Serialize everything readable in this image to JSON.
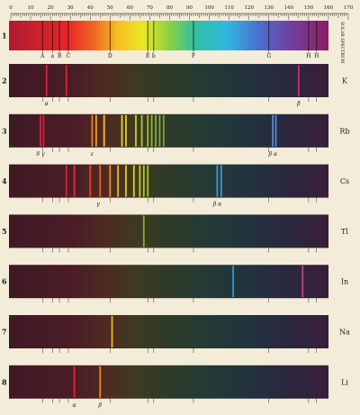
{
  "scale": {
    "numbers": [
      "0",
      "10",
      "20",
      "30",
      "40",
      "50",
      "60",
      "70",
      "80",
      "90",
      "100",
      "110",
      "120",
      "130",
      "140",
      "150",
      "160",
      "170"
    ],
    "vertical_label": "SOLAR SPECTRUM"
  },
  "solar": {
    "row_number": "1",
    "fraunhofer_labels": [
      "A",
      "a",
      "B",
      "C",
      "D",
      "E",
      "b",
      "F",
      "G",
      "H",
      "H"
    ],
    "lines": [
      16,
      21,
      24.5,
      29,
      50,
      69,
      72,
      92,
      130,
      150,
      154
    ]
  },
  "rows": [
    {
      "number": "2",
      "element": "K",
      "type": "mixed",
      "lines": [
        {
          "pos": 18,
          "color": "#e0203a"
        },
        {
          "pos": 28,
          "color": "#d8203a"
        },
        {
          "pos": 145,
          "color": "#c8306a"
        }
      ],
      "labels": [
        {
          "pos": 18,
          "text": "α"
        },
        {
          "pos": 145,
          "text": "β"
        }
      ]
    },
    {
      "number": "3",
      "element": "Rb",
      "type": "bright",
      "lines": [
        {
          "pos": 15,
          "color": "#e0203a"
        },
        {
          "pos": 16.5,
          "color": "#e0203a"
        },
        {
          "pos": 41,
          "color": "#f08020"
        },
        {
          "pos": 43,
          "color": "#f0a020"
        },
        {
          "pos": 47,
          "color": "#f0c020"
        },
        {
          "pos": 56,
          "color": "#e8d020"
        },
        {
          "pos": 58,
          "color": "#e8d020"
        },
        {
          "pos": 63,
          "color": "#c8d020"
        },
        {
          "pos": 66,
          "color": "#b0c830"
        },
        {
          "pos": 69,
          "color": "#a0c030"
        },
        {
          "pos": 71,
          "color": "#90b838"
        },
        {
          "pos": 73,
          "color": "#88b040"
        },
        {
          "pos": 75,
          "color": "#80a840"
        },
        {
          "pos": 77,
          "color": "#78a048"
        },
        {
          "pos": 132,
          "color": "#5a8ad0"
        },
        {
          "pos": 133.5,
          "color": "#5a8ad0"
        }
      ],
      "labels": [
        {
          "pos": 15,
          "text": "δ γ"
        },
        {
          "pos": 41,
          "text": "ε"
        },
        {
          "pos": 132,
          "text": "β α"
        }
      ]
    },
    {
      "number": "4",
      "element": "Cs",
      "type": "bright",
      "lines": [
        {
          "pos": 28,
          "color": "#e0203a"
        },
        {
          "pos": 32,
          "color": "#e0303a"
        },
        {
          "pos": 40,
          "color": "#e84030"
        },
        {
          "pos": 45,
          "color": "#f06020"
        },
        {
          "pos": 50,
          "color": "#f09020"
        },
        {
          "pos": 54,
          "color": "#f0b020"
        },
        {
          "pos": 58,
          "color": "#e8c820"
        },
        {
          "pos": 62,
          "color": "#d8d020"
        },
        {
          "pos": 65,
          "color": "#c8d028"
        },
        {
          "pos": 67,
          "color": "#b8c830"
        },
        {
          "pos": 69,
          "color": "#a8c030"
        },
        {
          "pos": 104,
          "color": "#3a9ad8"
        },
        {
          "pos": 106,
          "color": "#3a9ad8"
        }
      ],
      "labels": [
        {
          "pos": 44,
          "text": "γ"
        },
        {
          "pos": 104,
          "text": "β α"
        }
      ]
    },
    {
      "number": "5",
      "element": "Tl",
      "type": "bright",
      "lines": [
        {
          "pos": 67,
          "color": "#7ab040"
        }
      ],
      "labels": []
    },
    {
      "number": "6",
      "element": "In",
      "type": "bright",
      "lines": [
        {
          "pos": 112,
          "color": "#2a9ad8"
        },
        {
          "pos": 147,
          "color": "#c84080"
        }
      ],
      "labels": []
    },
    {
      "number": "7",
      "element": "Na",
      "type": "bright",
      "lines": [
        {
          "pos": 51,
          "color": "#f0b818"
        }
      ],
      "labels": []
    },
    {
      "number": "8",
      "element": "Li",
      "type": "bright",
      "lines": [
        {
          "pos": 32,
          "color": "#e0203a"
        },
        {
          "pos": 45,
          "color": "#f08828"
        }
      ],
      "labels": [
        {
          "pos": 32,
          "text": "α"
        },
        {
          "pos": 45,
          "text": "β"
        }
      ]
    }
  ]
}
